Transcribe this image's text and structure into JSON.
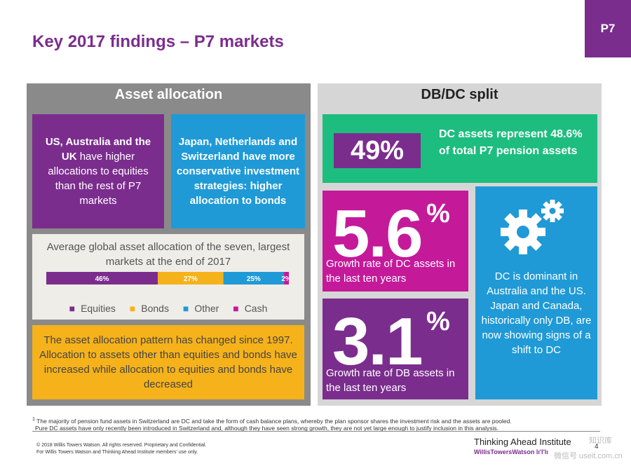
{
  "title": "Key 2017 findings – P7 markets",
  "tag": "P7",
  "asset_allocation": {
    "heading": "Asset allocation",
    "box_us": {
      "bold": "US, Australia and the UK",
      "rest": " have higher allocations to equities than the rest of P7 markets"
    },
    "box_jp": "Japan, Netherlands and Switzerland have more conservative investment strategies: higher allocation to bonds",
    "chart_title": "Average global asset allocation of the seven, largest markets at the end of 2017",
    "summary": "The asset allocation pattern has changed since 1997. Allocation to assets other than equities and bonds have increased while allocation to equities and bonds have decreased"
  },
  "chart_data": {
    "type": "bar",
    "orientation": "horizontal-stacked",
    "title": "Average global asset allocation of the seven, largest markets at the end of 2017",
    "categories": [
      "Average"
    ],
    "series": [
      {
        "name": "Equities",
        "values": [
          46
        ],
        "label": "46%",
        "color": "#7b2d8e"
      },
      {
        "name": "Bonds",
        "values": [
          27
        ],
        "label": "27%",
        "color": "#f6b21a"
      },
      {
        "name": "Other",
        "values": [
          25
        ],
        "label": "25%",
        "color": "#1f9ad6"
      },
      {
        "name": "Cash",
        "values": [
          2
        ],
        "label": "2%",
        "color": "#c41a9a"
      }
    ],
    "xlim": [
      0,
      100
    ],
    "legend": "bottom"
  },
  "dbdc": {
    "heading": "DB/DC split",
    "pct": "49%",
    "pct_text": "DC assets represent 48.6% of total P7 pension assets",
    "dc_growth": {
      "value": "5.6",
      "unit": "%",
      "label": "Growth rate of DC assets in the last ten years"
    },
    "db_growth": {
      "value": "3.1",
      "unit": "%",
      "label": "Growth rate of DB assets in the last ten years"
    },
    "dominant_text": "DC is dominant in Australia and the US. Japan and Canada, historically only DB, are now showing signs of a shift to DC",
    "icon": "gears-icon"
  },
  "footer": {
    "footnote_marker": "1",
    "footnote_line1": "The majority of pension fund assets in Switzerland are DC and take the form of cash balance plans, whereby the plan sponsor shares the investment risk and the assets are pooled.",
    "footnote_line2": "Pure DC assets have only recently been introduced in Switzerland and, although they have seen strong growth, they are not yet large enough to justify inclusion in this analysis.",
    "copyright_line1": "© 2018 Willis Towers Watson. All rights reserved. Proprietary and Confidential.",
    "copyright_line2": "For Willis Towers Watson and Thinking Ahead Institute members' use only.",
    "brand": "Thinking Ahead Institute",
    "brand_sub": "WillisTowersWatson lı'l'lı",
    "page_number": "4",
    "watermark_top": "知识库",
    "watermark_bottom": "微信号 useit.com.cn"
  },
  "colors": {
    "purple": "#7b2d8e",
    "blue": "#1f9ad6",
    "green": "#1dbd7f",
    "magenta": "#c41a9a",
    "orange": "#f6b21a"
  }
}
